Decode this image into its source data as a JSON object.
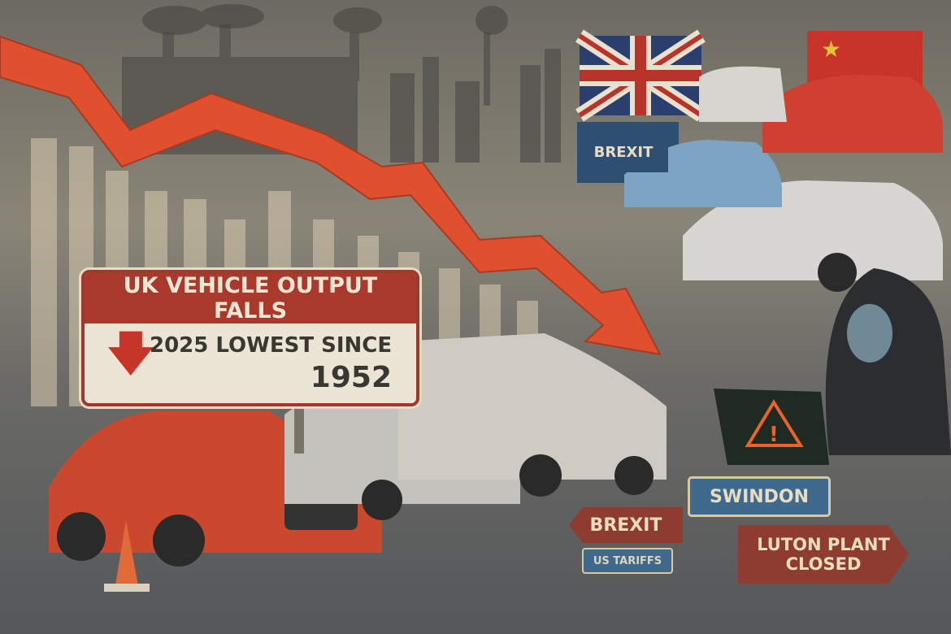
{
  "headline_sign": {
    "title": "UK VEHICLE OUTPUT FALLS",
    "line1": "2025 LOWEST SINCE",
    "line2": "1952",
    "arrow_icon": "down-arrow-icon"
  },
  "flag_sign": {
    "label": "BREXIT"
  },
  "road_signs": {
    "swindon": "SWINDON",
    "brexit": "BREXIT",
    "us_tariffs": "US TARIFFS",
    "luton": "LUTON PLANT CLOSED"
  },
  "colors": {
    "trend_arrow": "#e0502e",
    "sign_red": "#a8392c",
    "sign_blue": "#3f6a8e"
  }
}
